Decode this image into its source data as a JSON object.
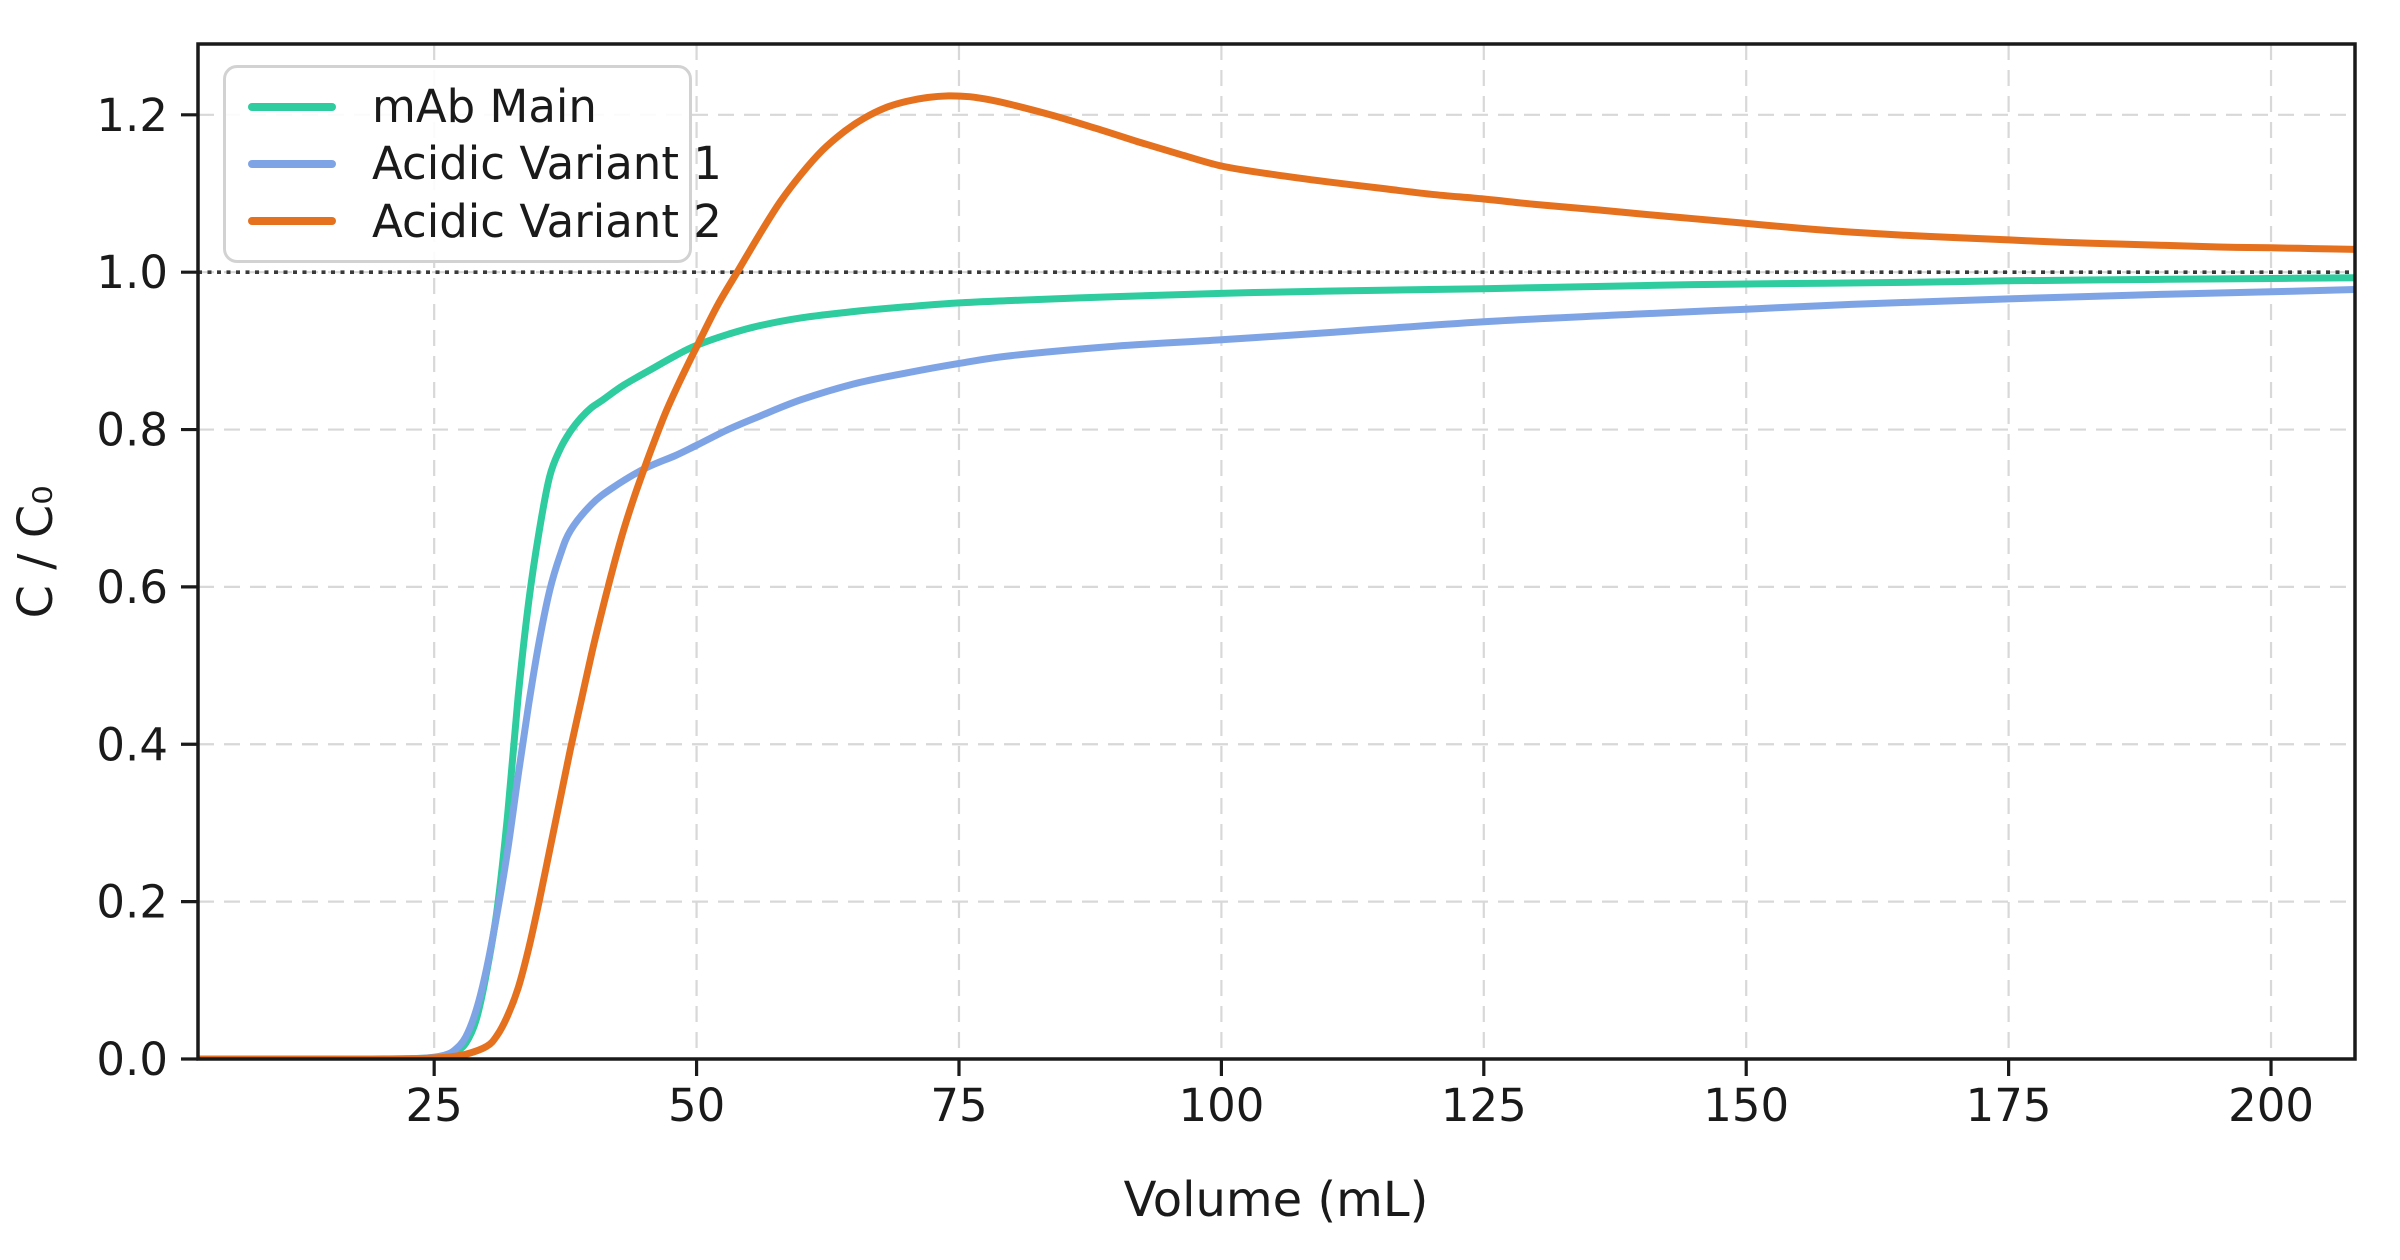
{
  "chart_data": {
    "type": "line",
    "title": "",
    "xlabel": "Volume (mL)",
    "ylabel": "C / C₀",
    "xlim": [
      2.5,
      208
    ],
    "ylim": [
      0,
      1.29
    ],
    "grid": true,
    "legend_position": "upper left",
    "xticks": [
      {
        "v": 25,
        "label": "25"
      },
      {
        "v": 50,
        "label": "50"
      },
      {
        "v": 75,
        "label": "75"
      },
      {
        "v": 100,
        "label": "100"
      },
      {
        "v": 125,
        "label": "125"
      },
      {
        "v": 150,
        "label": "150"
      },
      {
        "v": 175,
        "label": "175"
      },
      {
        "v": 200,
        "label": "200"
      }
    ],
    "yticks": [
      {
        "v": 0.0,
        "label": "0.0"
      },
      {
        "v": 0.2,
        "label": "0.2"
      },
      {
        "v": 0.4,
        "label": "0.4"
      },
      {
        "v": 0.6,
        "label": "0.6"
      },
      {
        "v": 0.8,
        "label": "0.8"
      },
      {
        "v": 1.0,
        "label": "1.0"
      },
      {
        "v": 1.2,
        "label": "1.2"
      }
    ],
    "reference_line": {
      "y": 1.0,
      "style": "dotted",
      "color": "#3a3a3a"
    },
    "series": [
      {
        "name": "mAb Main",
        "color": "#2ECC9E",
        "points": [
          [
            2.5,
            0
          ],
          [
            10,
            0
          ],
          [
            18,
            0
          ],
          [
            24,
            0.001
          ],
          [
            26,
            0.004
          ],
          [
            27,
            0.009
          ],
          [
            28,
            0.02
          ],
          [
            29,
            0.05
          ],
          [
            30,
            0.11
          ],
          [
            31,
            0.19
          ],
          [
            32,
            0.31
          ],
          [
            33,
            0.46
          ],
          [
            34,
            0.58
          ],
          [
            35,
            0.67
          ],
          [
            36,
            0.74
          ],
          [
            37,
            0.775
          ],
          [
            38,
            0.798
          ],
          [
            39,
            0.815
          ],
          [
            40,
            0.828
          ],
          [
            41,
            0.837
          ],
          [
            43,
            0.856
          ],
          [
            46,
            0.879
          ],
          [
            48,
            0.894
          ],
          [
            50,
            0.907
          ],
          [
            53,
            0.921
          ],
          [
            56,
            0.932
          ],
          [
            60,
            0.942
          ],
          [
            65,
            0.95
          ],
          [
            70,
            0.956
          ],
          [
            75,
            0.961
          ],
          [
            80,
            0.964
          ],
          [
            90,
            0.969
          ],
          [
            100,
            0.973
          ],
          [
            110,
            0.976
          ],
          [
            125,
            0.979
          ],
          [
            140,
            0.983
          ],
          [
            150,
            0.985
          ],
          [
            165,
            0.987
          ],
          [
            175,
            0.989
          ],
          [
            190,
            0.991
          ],
          [
            200,
            0.992
          ],
          [
            208,
            0.993
          ]
        ]
      },
      {
        "name": "Acidic Variant 1",
        "color": "#7FA4E6",
        "points": [
          [
            2.5,
            0
          ],
          [
            12,
            0
          ],
          [
            20,
            0
          ],
          [
            24,
            0.001
          ],
          [
            26,
            0.005
          ],
          [
            27,
            0.012
          ],
          [
            28,
            0.028
          ],
          [
            29,
            0.062
          ],
          [
            30,
            0.115
          ],
          [
            31,
            0.185
          ],
          [
            32,
            0.265
          ],
          [
            33,
            0.36
          ],
          [
            34,
            0.45
          ],
          [
            35,
            0.53
          ],
          [
            36,
            0.595
          ],
          [
            37,
            0.64
          ],
          [
            38,
            0.672
          ],
          [
            40,
            0.705
          ],
          [
            42,
            0.726
          ],
          [
            45,
            0.75
          ],
          [
            48,
            0.767
          ],
          [
            50,
            0.78
          ],
          [
            53,
            0.8
          ],
          [
            56,
            0.817
          ],
          [
            60,
            0.838
          ],
          [
            65,
            0.858
          ],
          [
            70,
            0.872
          ],
          [
            75,
            0.884
          ],
          [
            80,
            0.894
          ],
          [
            90,
            0.906
          ],
          [
            100,
            0.914
          ],
          [
            110,
            0.923
          ],
          [
            125,
            0.937
          ],
          [
            140,
            0.947
          ],
          [
            150,
            0.953
          ],
          [
            160,
            0.959
          ],
          [
            175,
            0.966
          ],
          [
            190,
            0.972
          ],
          [
            200,
            0.975
          ],
          [
            208,
            0.978
          ]
        ]
      },
      {
        "name": "Acidic Variant 2",
        "color": "#E5711F",
        "points": [
          [
            2.5,
            0
          ],
          [
            14,
            0
          ],
          [
            22,
            0
          ],
          [
            26,
            0.002
          ],
          [
            28,
            0.006
          ],
          [
            30,
            0.016
          ],
          [
            31,
            0.03
          ],
          [
            32,
            0.055
          ],
          [
            33,
            0.09
          ],
          [
            34,
            0.14
          ],
          [
            35,
            0.2
          ],
          [
            36,
            0.265
          ],
          [
            37,
            0.33
          ],
          [
            38,
            0.395
          ],
          [
            39,
            0.455
          ],
          [
            40,
            0.515
          ],
          [
            41,
            0.57
          ],
          [
            42,
            0.622
          ],
          [
            43,
            0.67
          ],
          [
            44,
            0.712
          ],
          [
            45,
            0.75
          ],
          [
            46,
            0.786
          ],
          [
            47,
            0.82
          ],
          [
            48,
            0.85
          ],
          [
            49,
            0.878
          ],
          [
            50,
            0.905
          ],
          [
            52,
            0.958
          ],
          [
            54,
            1.003
          ],
          [
            56,
            1.048
          ],
          [
            58,
            1.09
          ],
          [
            60,
            1.125
          ],
          [
            62,
            1.155
          ],
          [
            64,
            1.178
          ],
          [
            66,
            1.196
          ],
          [
            68,
            1.209
          ],
          [
            70,
            1.217
          ],
          [
            72,
            1.222
          ],
          [
            74,
            1.224
          ],
          [
            76,
            1.223
          ],
          [
            78,
            1.219
          ],
          [
            80,
            1.213
          ],
          [
            84,
            1.199
          ],
          [
            88,
            1.183
          ],
          [
            92,
            1.166
          ],
          [
            96,
            1.15
          ],
          [
            100,
            1.135
          ],
          [
            105,
            1.124
          ],
          [
            110,
            1.115
          ],
          [
            115,
            1.107
          ],
          [
            120,
            1.099
          ],
          [
            125,
            1.093
          ],
          [
            130,
            1.086
          ],
          [
            136,
            1.079
          ],
          [
            140,
            1.074
          ],
          [
            145,
            1.068
          ],
          [
            150,
            1.062
          ],
          [
            155,
            1.056
          ],
          [
            160,
            1.051
          ],
          [
            165,
            1.047
          ],
          [
            170,
            1.044
          ],
          [
            175,
            1.041
          ],
          [
            180,
            1.038
          ],
          [
            185,
            1.036
          ],
          [
            190,
            1.034
          ],
          [
            195,
            1.032
          ],
          [
            200,
            1.031
          ],
          [
            204,
            1.03
          ],
          [
            208,
            1.029
          ]
        ]
      }
    ]
  },
  "style_colors": {
    "grid": "#d8d8d8",
    "spine": "#1a1a1a",
    "tick": "#1a1a1a",
    "text": "#1a1a1a",
    "legend_border": "#d2d2d2",
    "background": "#ffffff"
  }
}
